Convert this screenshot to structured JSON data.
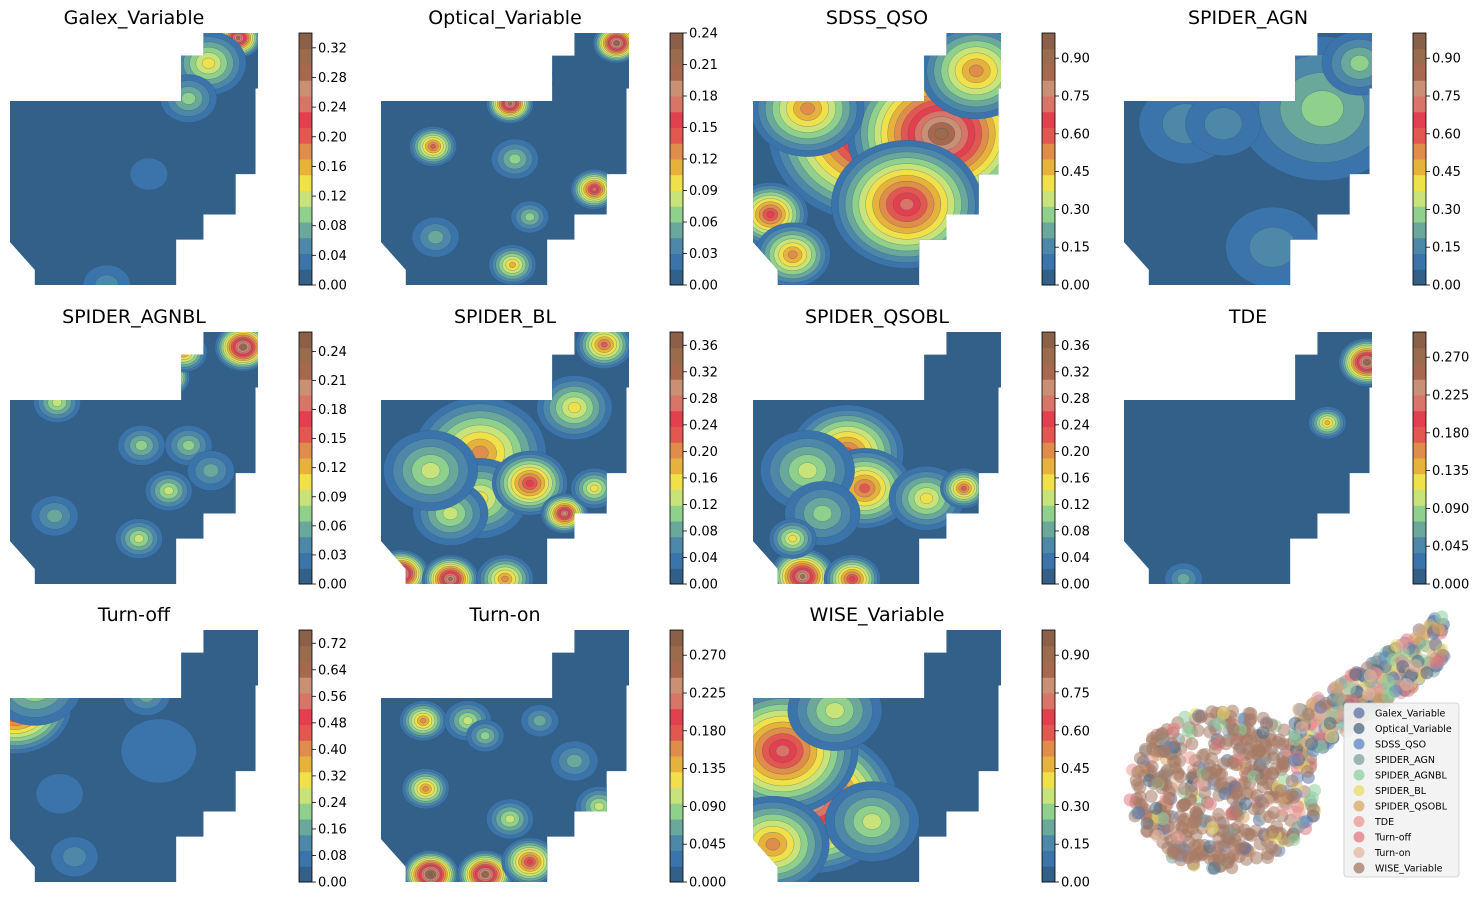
{
  "palette": [
    "#336089",
    "#3b74ab",
    "#4d88a8",
    "#6ba89c",
    "#8fd08d",
    "#c7e37a",
    "#f0e04a",
    "#e6b23c",
    "#e08c4b",
    "#e2574f",
    "#e23f4f",
    "#d87468",
    "#c99075",
    "#a8674f",
    "#9b6b4e",
    "#8a6148"
  ],
  "chart_data": [
    {
      "type": "heatmap",
      "title": "Galex_Variable",
      "colorbar_ticks": [
        "0.00",
        "0.04",
        "0.08",
        "0.12",
        "0.16",
        "0.20",
        "0.24",
        "0.28",
        "0.32"
      ],
      "vmax": 0.34,
      "hotspots": [
        [
          0.92,
          0.02,
          0.3,
          0.05
        ],
        [
          0.8,
          0.12,
          0.14,
          0.08
        ],
        [
          0.72,
          0.26,
          0.1,
          0.06
        ],
        [
          0.56,
          0.56,
          0.03,
          0.04
        ],
        [
          0.39,
          1.0,
          0.05,
          0.05
        ]
      ]
    },
    {
      "type": "heatmap",
      "title": "Optical_Variable",
      "colorbar_ticks": [
        "0.00",
        "0.03",
        "0.06",
        "0.09",
        "0.12",
        "0.15",
        "0.18",
        "0.21",
        "0.24"
      ],
      "vmax": 0.24,
      "hotspots": [
        [
          0.95,
          0.04,
          0.22,
          0.05
        ],
        [
          0.6,
          0.18,
          0.18,
          0.05
        ],
        [
          0.52,
          0.28,
          0.2,
          0.05
        ],
        [
          0.21,
          0.45,
          0.15,
          0.05
        ],
        [
          0.54,
          0.5,
          0.06,
          0.05
        ],
        [
          0.86,
          0.62,
          0.18,
          0.05
        ],
        [
          0.6,
          0.73,
          0.07,
          0.04
        ],
        [
          0.22,
          0.81,
          0.05,
          0.05
        ],
        [
          0.53,
          0.92,
          0.11,
          0.05
        ]
      ]
    },
    {
      "type": "heatmap",
      "title": "SDSS_QSO",
      "colorbar_ticks": [
        "0.00",
        "0.15",
        "0.30",
        "0.45",
        "0.60",
        "0.75",
        "0.90"
      ],
      "vmax": 1.0,
      "hotspots": [
        [
          0.48,
          0.4,
          0.85,
          0.22
        ],
        [
          0.76,
          0.4,
          0.9,
          0.2
        ],
        [
          0.62,
          0.68,
          0.75,
          0.16
        ],
        [
          0.9,
          0.15,
          0.55,
          0.12
        ],
        [
          0.22,
          0.3,
          0.55,
          0.12
        ],
        [
          0.07,
          0.72,
          0.65,
          0.08
        ],
        [
          0.16,
          0.88,
          0.55,
          0.08
        ]
      ]
    },
    {
      "type": "heatmap",
      "title": "SPIDER_AGN",
      "colorbar_ticks": [
        "0.00",
        "0.15",
        "0.30",
        "0.45",
        "0.60",
        "0.75",
        "0.90"
      ],
      "vmax": 1.0,
      "hotspots": [
        [
          0.63,
          0.1,
          0.65,
          0.08
        ],
        [
          0.8,
          0.3,
          0.28,
          0.18
        ],
        [
          0.95,
          0.12,
          0.25,
          0.08
        ],
        [
          0.25,
          0.36,
          0.15,
          0.1
        ],
        [
          0.4,
          0.36,
          0.15,
          0.08
        ],
        [
          0.6,
          0.85,
          0.1,
          0.1
        ]
      ]
    },
    {
      "type": "heatmap",
      "title": "SPIDER_AGNBL",
      "colorbar_ticks": [
        "0.00",
        "0.03",
        "0.06",
        "0.09",
        "0.12",
        "0.15",
        "0.18",
        "0.21",
        "0.24"
      ],
      "vmax": 0.26,
      "hotspots": [
        [
          0.63,
          0.18,
          0.2,
          0.05
        ],
        [
          0.94,
          0.06,
          0.25,
          0.06
        ],
        [
          0.7,
          0.08,
          0.14,
          0.05
        ],
        [
          0.19,
          0.28,
          0.09,
          0.05
        ],
        [
          0.53,
          0.45,
          0.07,
          0.05
        ],
        [
          0.72,
          0.45,
          0.07,
          0.05
        ],
        [
          0.64,
          0.63,
          0.08,
          0.05
        ],
        [
          0.81,
          0.55,
          0.06,
          0.05
        ],
        [
          0.52,
          0.82,
          0.08,
          0.05
        ],
        [
          0.18,
          0.73,
          0.06,
          0.05
        ]
      ]
    },
    {
      "type": "heatmap",
      "title": "SPIDER_BL",
      "colorbar_ticks": [
        "0.00",
        "0.04",
        "0.08",
        "0.12",
        "0.16",
        "0.20",
        "0.24",
        "0.28",
        "0.32",
        "0.36"
      ],
      "vmax": 0.38,
      "hotspots": [
        [
          0.4,
          0.48,
          0.2,
          0.14
        ],
        [
          0.4,
          0.66,
          0.16,
          0.1
        ],
        [
          0.6,
          0.6,
          0.25,
          0.08
        ],
        [
          0.28,
          0.72,
          0.12,
          0.08
        ],
        [
          0.08,
          0.96,
          0.36,
          0.06
        ],
        [
          0.28,
          0.98,
          0.32,
          0.06
        ],
        [
          0.5,
          0.98,
          0.2,
          0.06
        ],
        [
          0.74,
          0.72,
          0.3,
          0.05
        ],
        [
          0.86,
          0.62,
          0.15,
          0.05
        ],
        [
          0.9,
          0.05,
          0.22,
          0.06
        ],
        [
          0.2,
          0.55,
          0.12,
          0.1
        ],
        [
          0.78,
          0.3,
          0.14,
          0.08
        ]
      ]
    },
    {
      "type": "heatmap",
      "title": "SPIDER_QSOBL",
      "colorbar_ticks": [
        "0.00",
        "0.04",
        "0.08",
        "0.12",
        "0.16",
        "0.20",
        "0.24",
        "0.28",
        "0.32",
        "0.36"
      ],
      "vmax": 0.38,
      "hotspots": [
        [
          0.38,
          0.48,
          0.22,
          0.12
        ],
        [
          0.45,
          0.62,
          0.22,
          0.1
        ],
        [
          0.22,
          0.55,
          0.13,
          0.1
        ],
        [
          0.28,
          0.72,
          0.1,
          0.08
        ],
        [
          0.7,
          0.66,
          0.14,
          0.08
        ],
        [
          0.85,
          0.62,
          0.22,
          0.05
        ],
        [
          0.2,
          0.97,
          0.32,
          0.07
        ],
        [
          0.4,
          0.98,
          0.25,
          0.06
        ],
        [
          0.16,
          0.82,
          0.14,
          0.05
        ]
      ]
    },
    {
      "type": "heatmap",
      "title": "TDE",
      "colorbar_ticks": [
        "0.000",
        "0.045",
        "0.090",
        "0.135",
        "0.180",
        "0.225",
        "0.270"
      ],
      "vmax": 0.3,
      "hotspots": [
        [
          0.98,
          0.12,
          0.28,
          0.06
        ],
        [
          0.82,
          0.36,
          0.14,
          0.04
        ],
        [
          0.24,
          0.98,
          0.05,
          0.04
        ]
      ]
    },
    {
      "type": "heatmap",
      "title": "Turn-off",
      "colorbar_ticks": [
        "0.00",
        "0.08",
        "0.16",
        "0.24",
        "0.32",
        "0.40",
        "0.48",
        "0.56",
        "0.64",
        "0.72"
      ],
      "vmax": 0.76,
      "hotspots": [
        [
          0.02,
          0.3,
          0.6,
          0.12
        ],
        [
          0.1,
          0.22,
          0.25,
          0.1
        ],
        [
          0.55,
          0.26,
          0.13,
          0.05
        ],
        [
          0.26,
          0.9,
          0.12,
          0.05
        ],
        [
          0.2,
          0.65,
          0.04,
          0.05
        ],
        [
          0.6,
          0.48,
          0.05,
          0.08
        ]
      ]
    },
    {
      "type": "heatmap",
      "title": "Turn-on",
      "colorbar_ticks": [
        "0.000",
        "0.045",
        "0.090",
        "0.135",
        "0.180",
        "0.225",
        "0.270"
      ],
      "vmax": 0.3,
      "hotspots": [
        [
          0.17,
          0.36,
          0.16,
          0.05
        ],
        [
          0.35,
          0.36,
          0.1,
          0.05
        ],
        [
          0.18,
          0.63,
          0.16,
          0.05
        ],
        [
          0.42,
          0.42,
          0.07,
          0.04
        ],
        [
          0.64,
          0.36,
          0.06,
          0.04
        ],
        [
          0.52,
          0.75,
          0.1,
          0.05
        ],
        [
          0.2,
          0.97,
          0.3,
          0.06
        ],
        [
          0.42,
          0.97,
          0.27,
          0.06
        ],
        [
          0.6,
          0.92,
          0.2,
          0.06
        ],
        [
          0.88,
          0.7,
          0.1,
          0.05
        ],
        [
          0.78,
          0.52,
          0.06,
          0.05
        ]
      ]
    },
    {
      "type": "heatmap",
      "title": "WISE_Variable",
      "colorbar_ticks": [
        "0.00",
        "0.15",
        "0.30",
        "0.45",
        "0.60",
        "0.75",
        "0.90"
      ],
      "vmax": 1.0,
      "hotspots": [
        [
          0.24,
          0.68,
          0.85,
          0.18
        ],
        [
          0.12,
          0.48,
          0.7,
          0.16
        ],
        [
          0.08,
          0.85,
          0.55,
          0.12
        ],
        [
          0.33,
          0.32,
          0.35,
          0.1
        ],
        [
          0.48,
          0.76,
          0.3,
          0.1
        ],
        [
          0.56,
          0.18,
          0.12,
          0.05
        ]
      ]
    },
    {
      "type": "scatter",
      "title": "",
      "legend": {
        "placement": "lower-right",
        "entries": [
          {
            "label": "Galex_Variable",
            "color": "#5c6fa8"
          },
          {
            "label": "Optical_Variable",
            "color": "#4a6a86"
          },
          {
            "label": "SDSS_QSO",
            "color": "#5e86c4"
          },
          {
            "label": "SPIDER_AGN",
            "color": "#7fa0a0"
          },
          {
            "label": "SPIDER_AGNBL",
            "color": "#8fcf9f"
          },
          {
            "label": "SPIDER_BL",
            "color": "#e8de68"
          },
          {
            "label": "SPIDER_QSOBL",
            "color": "#d9a867"
          },
          {
            "label": "TDE",
            "color": "#e89a94"
          },
          {
            "label": "Turn-off",
            "color": "#e07a80"
          },
          {
            "label": "Turn-on",
            "color": "#e3b8a0"
          },
          {
            "label": "WISE_Variable",
            "color": "#a67a66"
          }
        ]
      }
    }
  ]
}
